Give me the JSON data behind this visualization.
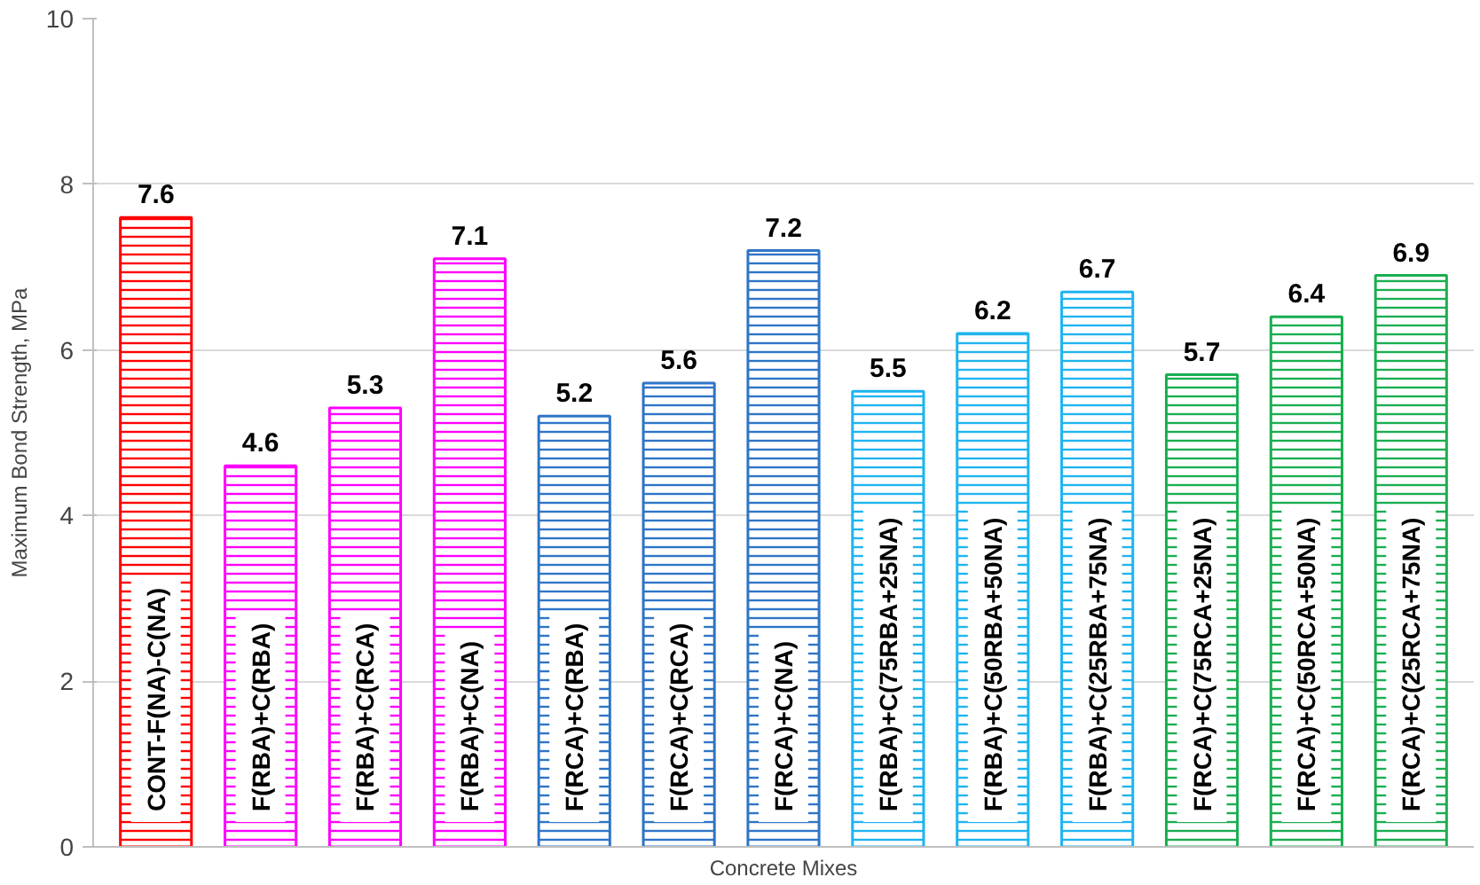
{
  "chart_data": {
    "type": "bar",
    "xlabel": "Concrete Mixes",
    "ylabel": "Maximum Bond Strength, MPa",
    "categories": [
      "CONT-F(NA)-C(NA)",
      "F(RBA)+C(RBA)",
      "F(RBA)+C(RCA)",
      "F(RBA)+C(NA)",
      "F(RCA)+C(RBA)",
      "F(RCA)+C(RCA)",
      "F(RCA)+C(NA)",
      "F(RBA)+C(75RBA+25NA)",
      "F(RBA)+C(50RBA+50NA)",
      "F(RBA)+C(25RBA+75NA)",
      "F(RCA)+C(75RCA+25NA)",
      "F(RCA)+C(50RCA+50NA)",
      "F(RCA)+C(25RCA+75NA)"
    ],
    "values": [
      7.6,
      4.6,
      5.3,
      7.1,
      5.2,
      5.6,
      7.2,
      5.5,
      6.2,
      6.7,
      5.7,
      6.4,
      6.9
    ],
    "colors": [
      "#ff0000",
      "#ff00ff",
      "#ff00ff",
      "#ff00ff",
      "#2e75c6",
      "#2e75c6",
      "#2e75c6",
      "#1fb4f0",
      "#1fb4f0",
      "#1fb4f0",
      "#1aae50",
      "#1aae50",
      "#1aae50"
    ],
    "ylim": [
      0,
      10
    ],
    "yticks": [
      0,
      2,
      4,
      6,
      8,
      10
    ],
    "grid": "y",
    "data_labels": true
  }
}
